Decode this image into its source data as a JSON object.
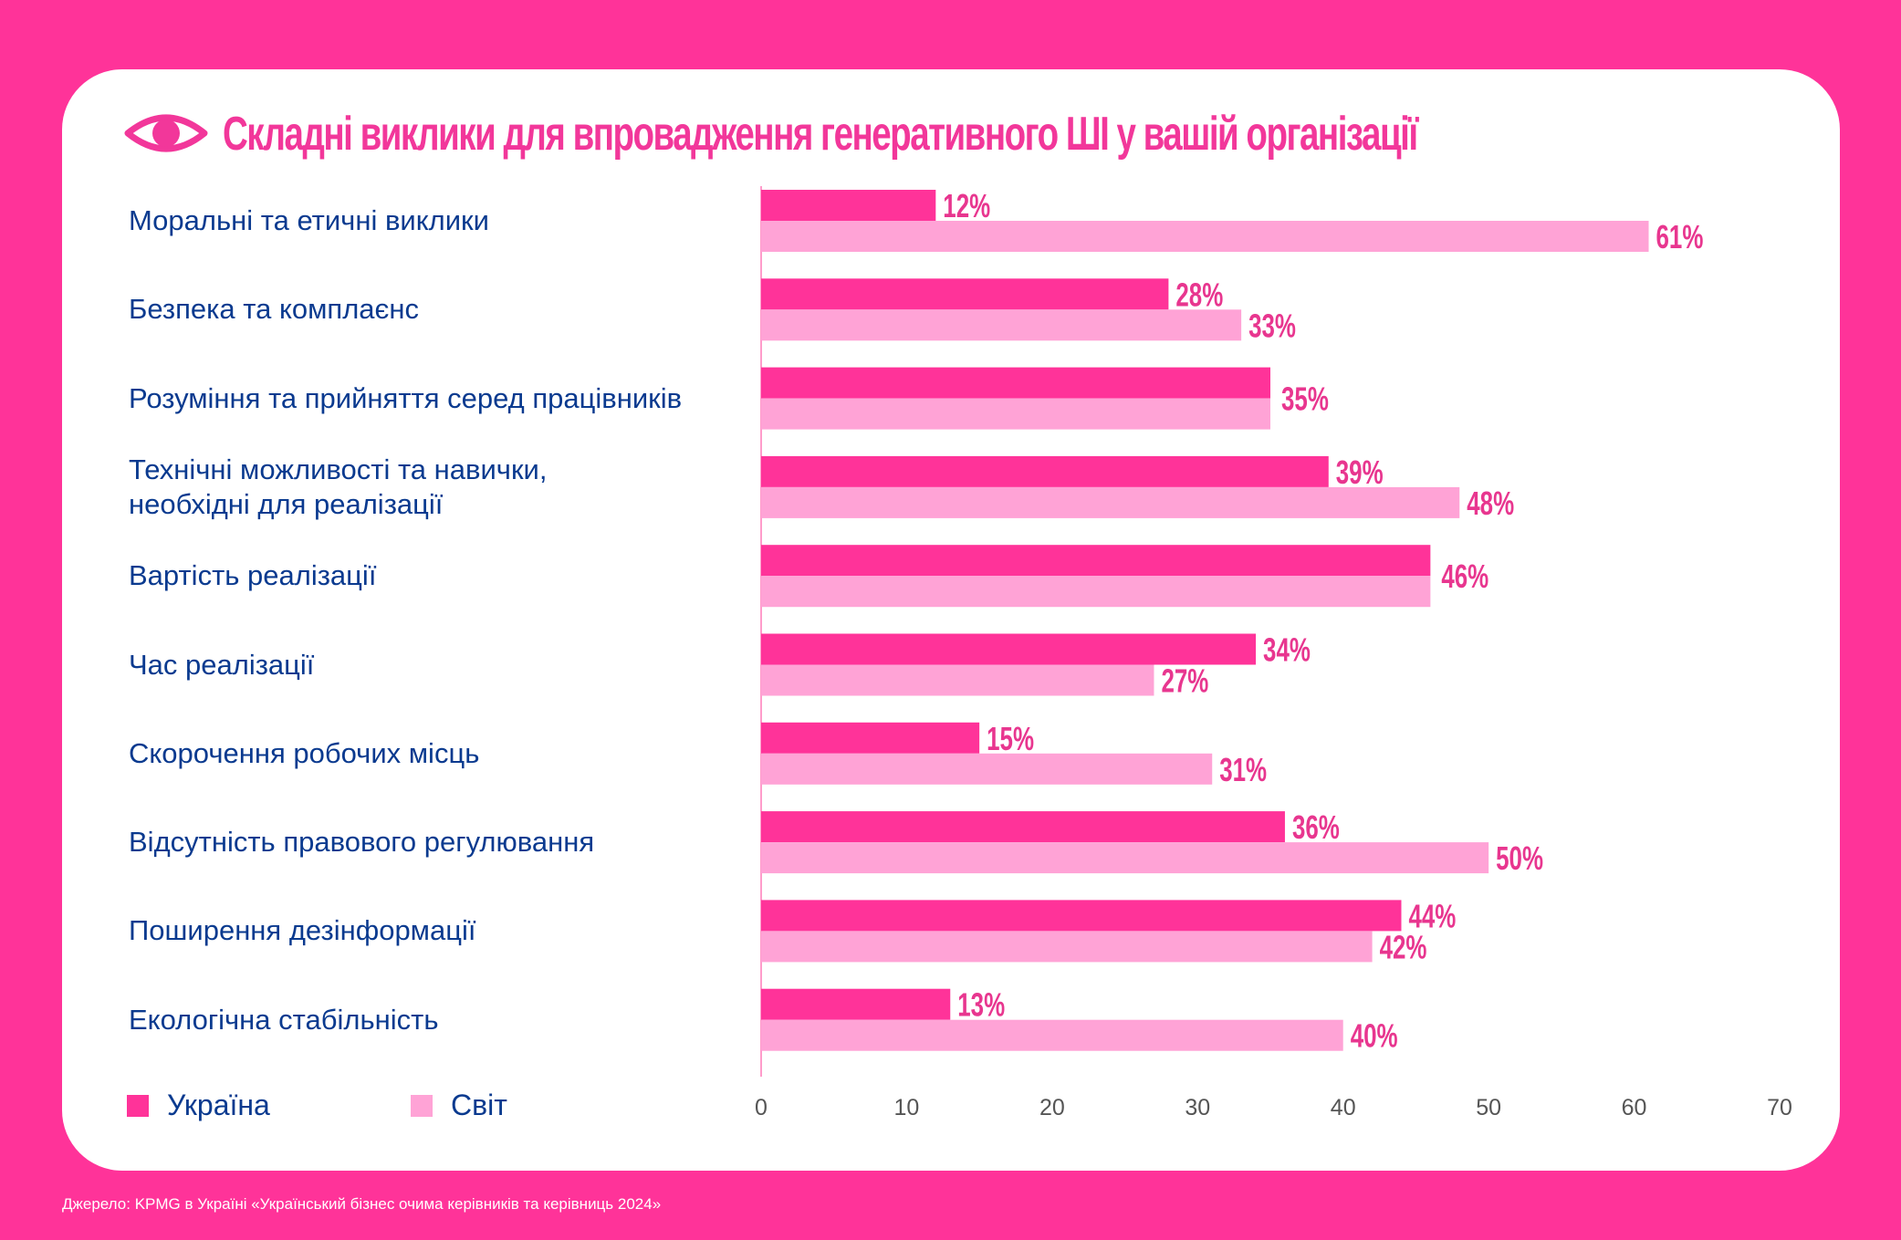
{
  "title": "Складні виклики для впровадження генеративного ШІ у вашій організації",
  "icon": "eye-icon",
  "colors": {
    "background": "#FF3399",
    "ukraine": "#FF3399",
    "world": "#FFA3D6",
    "label_text": "#0A3A8F",
    "value_text": "#E8368F"
  },
  "legend": [
    {
      "name": "Україна",
      "color": "#FF3399"
    },
    {
      "name": "Світ",
      "color": "#FFA3D6"
    }
  ],
  "source": "Джерело: KPMG в Україні «Український бізнес очима керівників та керівниць 2024»",
  "chart_data": {
    "type": "bar",
    "orientation": "horizontal",
    "title": "Складні виклики для впровадження генеративного ШІ у вашій організації",
    "xlabel": "",
    "ylabel": "",
    "xlim": [
      0,
      70
    ],
    "xticks": [
      0,
      10,
      20,
      30,
      40,
      50,
      60,
      70
    ],
    "grid": false,
    "legend_position": "bottom-left",
    "categories": [
      "Моральні та етичні виклики",
      "Безпека та комплаєнс",
      "Розуміння та прийняття серед працівників",
      "Технічні можливості та навички,\nнеобхідні для реалізації",
      "Вартість реалізації",
      "Час реалізації",
      "Скорочення робочих місць",
      "Відсутність правового регулювання",
      "Поширення дезінформації",
      "Екологічна стабільність"
    ],
    "series": [
      {
        "name": "Україна",
        "values": [
          12,
          28,
          35,
          39,
          46,
          34,
          15,
          36,
          44,
          13
        ]
      },
      {
        "name": "Світ",
        "values": [
          61,
          33,
          35,
          48,
          46,
          27,
          31,
          50,
          42,
          40
        ]
      }
    ],
    "value_suffix": "%"
  }
}
